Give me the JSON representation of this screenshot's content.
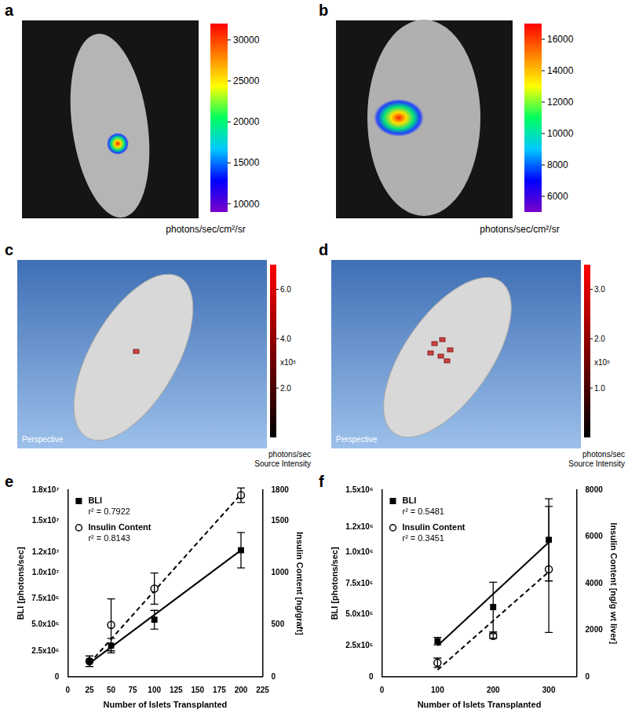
{
  "panels": [
    {
      "letter": "a",
      "style": "photo",
      "colorbar": {
        "range": [
          9000,
          32000
        ],
        "ticks": [
          10000,
          15000,
          20000,
          25000,
          30000
        ]
      },
      "units": "photons/sec/cm²/sr"
    },
    {
      "letter": "b",
      "style": "photo",
      "colorbar": {
        "range": [
          5000,
          17000
        ],
        "ticks": [
          6000,
          8000,
          10000,
          12000,
          14000,
          16000
        ]
      },
      "units": "photons/sec/cm²/sr"
    },
    {
      "letter": "c",
      "style": "3d",
      "colorbar": {
        "range": [
          0,
          7
        ],
        "ticks": [
          {
            "value": 2,
            "label": "2.0"
          },
          {
            "value": 4,
            "label": "4.0"
          },
          {
            "value": 6,
            "label": "6.0"
          }
        ],
        "multiplier": "x10⁵"
      },
      "units": "photons/sec",
      "units_sub": "Source Intensity",
      "view": "Perspective"
    },
    {
      "letter": "d",
      "style": "3d",
      "colorbar": {
        "range": [
          0,
          3.5
        ],
        "ticks": [
          {
            "value": 1,
            "label": "1.0"
          },
          {
            "value": 2,
            "label": "2.0"
          },
          {
            "value": 3,
            "label": "3.0"
          }
        ],
        "multiplier": "x10⁵"
      },
      "units": "photons/sec",
      "units_sub": "Source Intensity",
      "view": "Perspective"
    }
  ],
  "chart_data": [
    {
      "panel": "e",
      "type": "scatter",
      "x_label": "Number of Islets Transplanted",
      "y_label": "BLI [photons/sec]",
      "y2_label": "Insulin Content [ng/graft]",
      "x": [
        25,
        50,
        100,
        200
      ],
      "xlim": [
        0,
        225
      ],
      "xticks": [
        0,
        25,
        50,
        75,
        100,
        125,
        150,
        175,
        200,
        225
      ],
      "ylim": [
        0,
        18000000
      ],
      "yticks": [
        0,
        {
          "value": 2500000,
          "label": "2.5x10⁶"
        },
        {
          "value": 5000000,
          "label": "5.0x10⁶"
        },
        {
          "value": 7500000,
          "label": "7.5x10⁶"
        },
        {
          "value": 10000000,
          "label": "1.0x10⁷"
        },
        {
          "value": 12000000,
          "label": "1.2x10⁷"
        },
        {
          "value": 15000000,
          "label": "1.5x10⁷"
        },
        {
          "value": 18000000,
          "label": "1.8x10⁷"
        }
      ],
      "y2lim": [
        0,
        1800
      ],
      "y2ticks": [
        0,
        500,
        1000,
        1500,
        1800
      ],
      "grid": false,
      "series": [
        {
          "name": "BLI",
          "annotation": "r² = 0.7922",
          "color": "#000000",
          "marker": "square",
          "line_style": "solid",
          "values": [
            1500000,
            3000000,
            5500000,
            12200000
          ],
          "errors": [
            500000,
            700000,
            900000,
            1700000
          ],
          "fit": {
            "x": [
              25,
              200
            ],
            "values": [
              1300000,
              12200000
            ]
          }
        },
        {
          "name": "Insulin Content",
          "annotation": "r² = 0.8143",
          "axis": "y2",
          "color": "#000000",
          "marker": "open_circle",
          "line_style": "dashed",
          "values": [
            150,
            500,
            850,
            1750
          ],
          "errors": [
            50,
            250,
            150,
            70
          ],
          "fit": {
            "x": [
              25,
              200
            ],
            "values": [
              130,
              1760
            ]
          }
        }
      ]
    },
    {
      "panel": "f",
      "type": "scatter",
      "x_label": "Number of Islets Transplanted",
      "y_label": "BLI [photons/sec]",
      "y2_label": "Insulin Content [ng/g wt liver]",
      "x": [
        100,
        200,
        300
      ],
      "xlim": [
        0,
        350
      ],
      "xticks": [
        0,
        100,
        200,
        300
      ],
      "ylim": [
        0,
        1500000
      ],
      "yticks": [
        0,
        {
          "value": 250000,
          "label": "2.5x10⁵"
        },
        {
          "value": 500000,
          "label": "5.0x10⁵"
        },
        {
          "value": 750000,
          "label": "7.5x10⁵"
        },
        {
          "value": 1000000,
          "label": "1.0x10⁶"
        },
        {
          "value": 1200000,
          "label": "1.2x10⁶"
        },
        {
          "value": 1500000,
          "label": "1.5x10⁶"
        }
      ],
      "y2lim": [
        0,
        8000
      ],
      "y2ticks": [
        0,
        2000,
        4000,
        6000,
        8000
      ],
      "grid": false,
      "series": [
        {
          "name": "BLI",
          "annotation": "r² = 0.5481",
          "color": "#000000",
          "marker": "square",
          "line_style": "solid",
          "values": [
            286000,
            560000,
            1100000
          ],
          "errors": [
            30000,
            200000,
            330000
          ],
          "fit": {
            "x": [
              100,
              300
            ],
            "values": [
              250000,
              1080000
            ]
          }
        },
        {
          "name": "Insulin Content",
          "annotation": "r² = 0.3451",
          "axis": "y2",
          "color": "#000000",
          "marker": "open_circle",
          "line_style": "dashed",
          "values": [
            600,
            1750,
            4600
          ],
          "errors": [
            200,
            100,
            2700
          ],
          "fit": {
            "x": [
              100,
              300
            ],
            "values": [
              300,
              4500
            ]
          }
        }
      ]
    }
  ]
}
